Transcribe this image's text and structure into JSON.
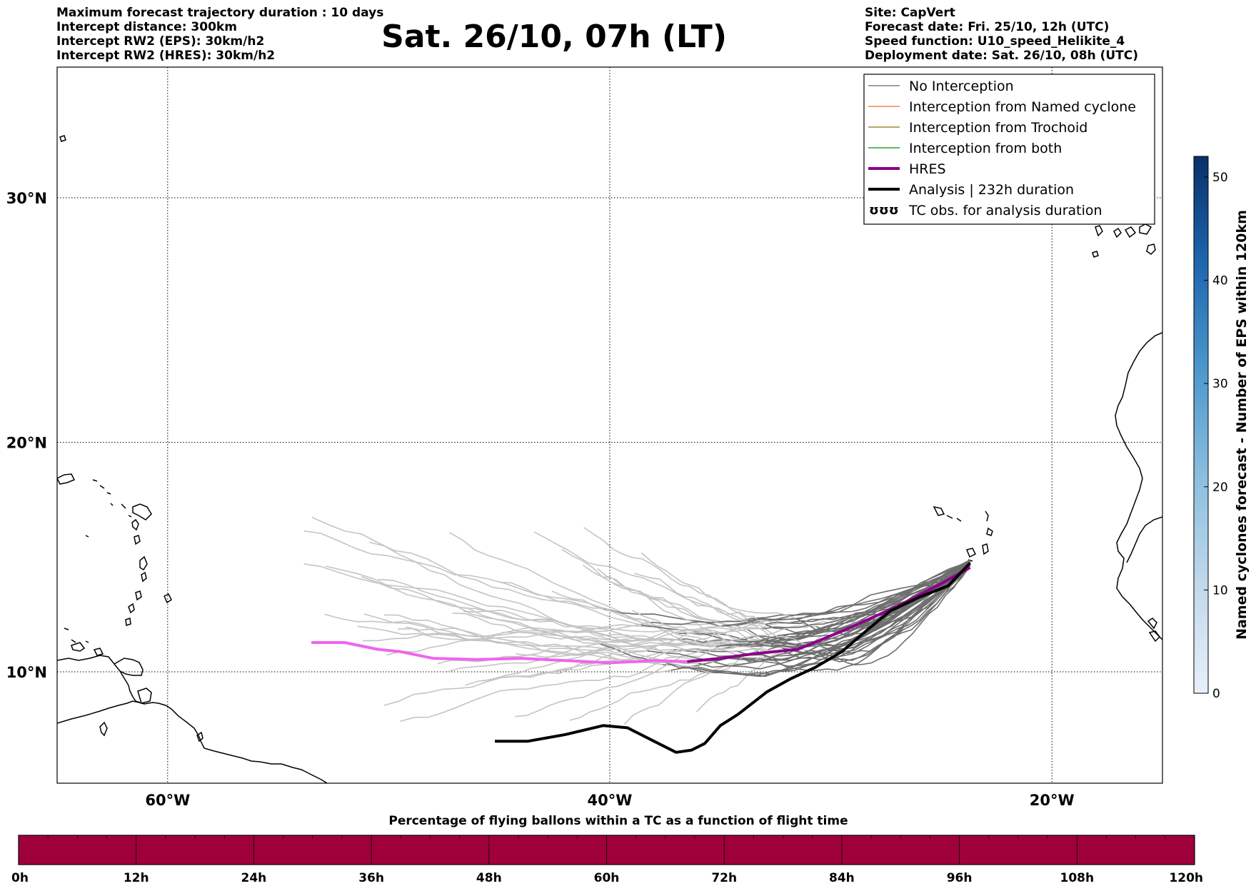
{
  "header_left": [
    "Maximum forecast trajectory duration : 10 days",
    "Intercept distance: 300km",
    "Intercept RW2 (EPS):  30km/h2",
    "Intercept RW2 (HRES): 30km/h2"
  ],
  "title": "Sat. 26/10, 07h (LT)",
  "header_right": [
    "Site: CapVert",
    "Forecast date: Fri. 25/10, 12h (UTC)",
    "Speed function: U10_speed_Helikite_4",
    "Deployment date: Sat. 26/10, 08h (UTC)"
  ],
  "map": {
    "lon_range": [
      -65,
      -15
    ],
    "lat_range": [
      5.5,
      34.8
    ],
    "lon_ticks": [
      {
        "lon": -60,
        "label": "60°W"
      },
      {
        "lon": -40,
        "label": "40°W"
      },
      {
        "lon": -20,
        "label": "20°W"
      }
    ],
    "lat_ticks": [
      {
        "lat": 30,
        "label": "30°N"
      },
      {
        "lat": 20,
        "label": "20°N"
      },
      {
        "lat": 10,
        "label": "10°N"
      }
    ],
    "grid": "dotted"
  },
  "legend": {
    "placement": "top-right",
    "items": [
      {
        "label": "No Interception",
        "color": "#808080",
        "style": "thin"
      },
      {
        "label": "Interception from Named cyclone",
        "color": "#ff7f50",
        "style": "thin"
      },
      {
        "label": "Interception from Trochoid",
        "color": "#9b8c3c",
        "style": "thin"
      },
      {
        "label": "Interception from both",
        "color": "#2ca02c",
        "style": "thin"
      },
      {
        "label": "HRES",
        "color": "#8b008b",
        "style": "thick"
      },
      {
        "label": "Analysis | 232h duration",
        "color": "#000000",
        "style": "thick"
      },
      {
        "label": "TC obs. for analysis duration",
        "color": "#000000",
        "style": "tc-symbol"
      }
    ]
  },
  "colorbar_right": {
    "label": "Named cyclones forecast - Number of EPS within 120km",
    "ticks": [
      0,
      10,
      20,
      30,
      40,
      50
    ],
    "range": [
      0,
      52
    ],
    "colors": [
      "#e6eef8",
      "#08306b"
    ]
  },
  "colorbar_bottom": {
    "title": "Percentage of flying ballons within a TC as a function of flight time",
    "ticks": [
      "0h",
      "12h",
      "24h",
      "36h",
      "48h",
      "60h",
      "72h",
      "84h",
      "96h",
      "108h",
      "120h"
    ],
    "color": "#a0003a"
  },
  "chart_data": {
    "type": "line",
    "deployment_site": {
      "lon": -23.7,
      "lat": 14.8
    },
    "hres_track": {
      "name": "HRES",
      "lon": [
        -23.7,
        -25,
        -27,
        -29.5,
        -31.5,
        -33.5,
        -35,
        -36.5,
        -38,
        -40,
        -42,
        -44,
        -46,
        -48,
        -49.5,
        -50.5,
        -52,
        -53.5
      ],
      "lat": [
        14.6,
        13.9,
        12.9,
        11.8,
        11.0,
        10.8,
        10.6,
        10.45,
        10.5,
        10.4,
        10.5,
        10.6,
        10.55,
        10.6,
        10.9,
        11.0,
        11.3,
        11.3
      ]
    },
    "analysis_track": {
      "name": "Analysis | 232h duration",
      "lon": [
        -23.7,
        -24.7,
        -26,
        -27.3,
        -28.3,
        -29.5,
        -30.7,
        -31.8,
        -32.9,
        -34.2,
        -35,
        -35.7,
        -36.3,
        -37,
        -38,
        -39.2,
        -40.3,
        -42,
        -43.7,
        -45.2
      ],
      "lat": [
        14.8,
        13.8,
        13.3,
        12.7,
        11.9,
        10.9,
        10.2,
        9.7,
        9.1,
        8.1,
        7.6,
        6.8,
        6.5,
        6.4,
        6.9,
        7.5,
        7.6,
        7.2,
        6.9,
        6.9
      ]
    },
    "eps_member_count": 45
  }
}
